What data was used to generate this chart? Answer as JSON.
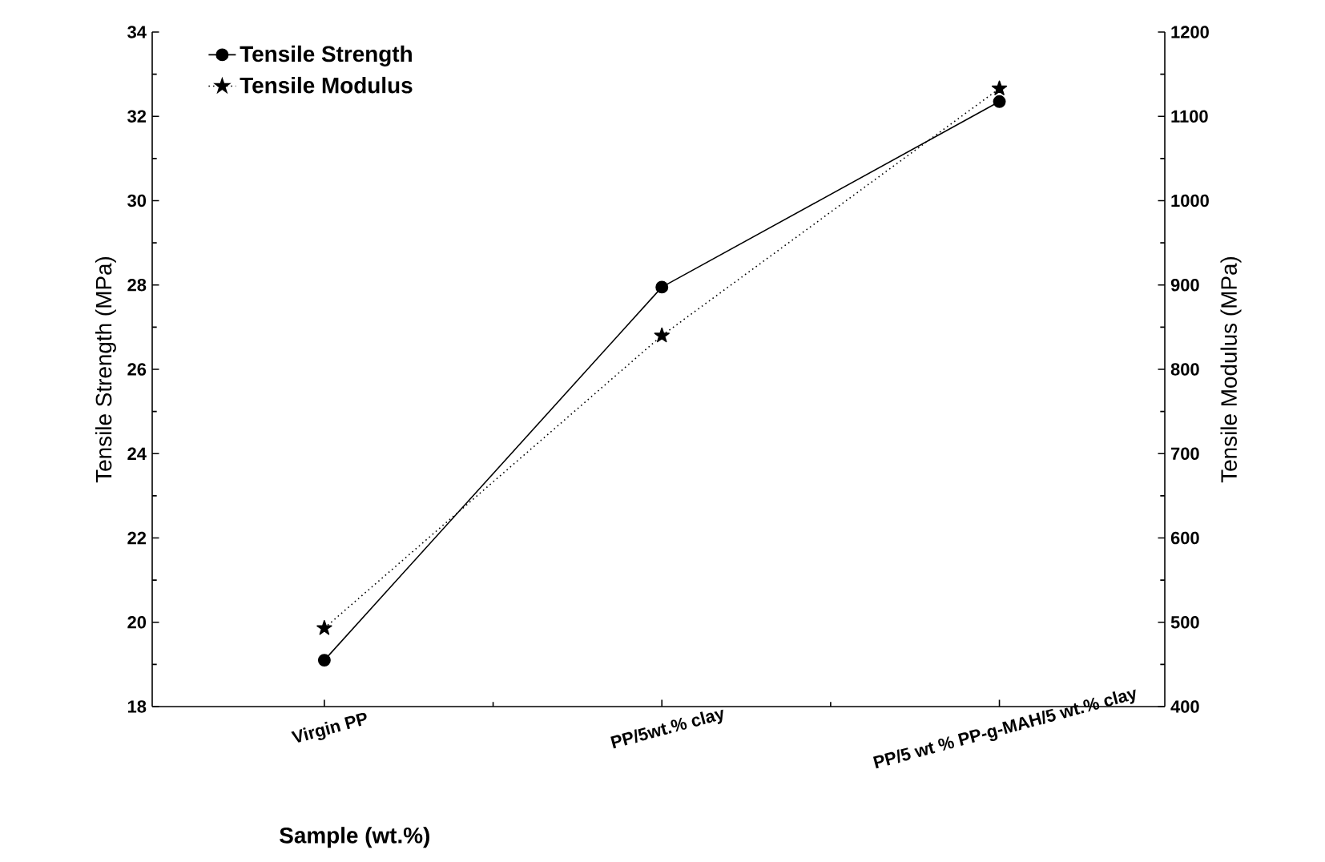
{
  "chart_data": {
    "type": "line",
    "xlabel": "Sample (wt.%)",
    "ylabel": "Tensile Strength (MPa)",
    "y2label": "Tensile Modulus (MPa)",
    "categories": [
      "Virgin PP",
      "PP/5wt.% clay",
      "PP/5 wt % PP-g-MAH/5 wt.% clay"
    ],
    "series": [
      {
        "name": "Tensile Strength",
        "color": "#000000",
        "values": [
          19.1,
          27.95,
          32.35
        ],
        "marker": "circle",
        "line_style": "solid"
      },
      {
        "name": "Tensile Modulus",
        "color": "#000000",
        "values": [
          493,
          840,
          1133
        ],
        "marker": "star",
        "line_style": "dotted",
        "axis": "y2"
      }
    ],
    "ylim": [
      18,
      34
    ],
    "yticks": [
      18,
      20,
      22,
      24,
      26,
      28,
      30,
      32,
      34
    ],
    "y2lim": [
      400,
      1200
    ],
    "y2ticks": [
      400,
      500,
      600,
      700,
      800,
      900,
      1000,
      1100,
      1200
    ],
    "legend": "top left",
    "grid": false
  }
}
